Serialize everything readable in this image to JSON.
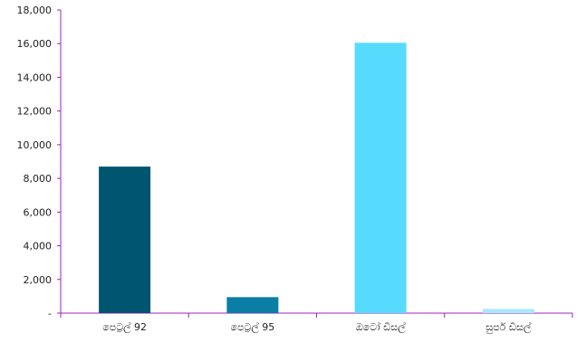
{
  "chart_data": {
    "type": "bar",
    "categories": [
      "පෙට්‍රල් 92",
      "පෙට්‍රල් 95",
      "ඔටෝ ඩීසල්",
      "සුපර් ඩීසල්"
    ],
    "values": [
      8700,
      950,
      16050,
      250
    ],
    "colors": [
      "#005570",
      "#0b7ea5",
      "#56dbff",
      "#a8e9ff"
    ],
    "ylim": [
      0,
      18000
    ],
    "yticks": [
      {
        "value": 0,
        "label": "-"
      },
      {
        "value": 2000,
        "label": "2,000"
      },
      {
        "value": 4000,
        "label": "4,000"
      },
      {
        "value": 6000,
        "label": "6,000"
      },
      {
        "value": 8000,
        "label": "8,000"
      },
      {
        "value": 10000,
        "label": "10,000"
      },
      {
        "value": 12000,
        "label": "12,000"
      },
      {
        "value": 14000,
        "label": "14,000"
      },
      {
        "value": 16000,
        "label": "16,000"
      },
      {
        "value": 18000,
        "label": "18,000"
      }
    ],
    "axis_color": "#a020c0",
    "grid": false,
    "title": "",
    "xlabel": "",
    "ylabel": ""
  }
}
